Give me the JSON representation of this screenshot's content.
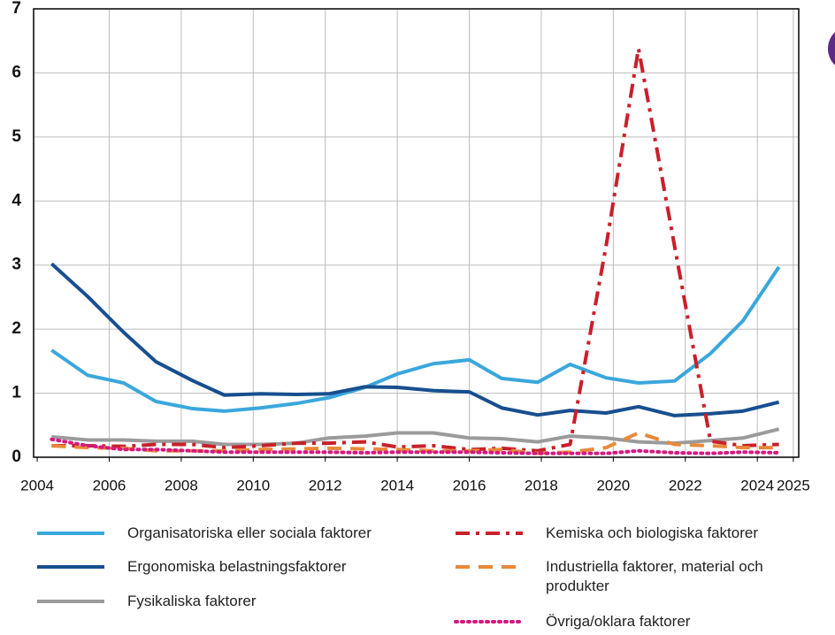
{
  "chart_data": {
    "type": "line",
    "x": [
      2004.4,
      2005.4,
      2006.4,
      2007.3,
      2008.3,
      2009.2,
      2010.2,
      2011.2,
      2012.1,
      2013.1,
      2014.0,
      2015.0,
      2016.0,
      2016.9,
      2017.9,
      2018.8,
      2019.8,
      2020.7,
      2021.7,
      2022.7,
      2023.6,
      2024.6
    ],
    "series": [
      {
        "name": "Organisatoriska eller sociala faktorer",
        "color": "#3aa7dc",
        "dash": "solid",
        "values": [
          1.67,
          1.28,
          1.16,
          0.87,
          0.76,
          0.72,
          0.77,
          0.84,
          0.93,
          1.09,
          1.3,
          1.46,
          1.52,
          1.23,
          1.17,
          1.45,
          1.24,
          1.16,
          1.19,
          1.62,
          2.13,
          2.97
        ]
      },
      {
        "name": "Ergonomiska belastningsfaktorer",
        "color": "#174f8f",
        "dash": "solid",
        "values": [
          3.02,
          2.51,
          1.95,
          1.49,
          1.2,
          0.97,
          0.99,
          0.98,
          0.99,
          1.1,
          1.09,
          1.04,
          1.02,
          0.77,
          0.66,
          0.73,
          0.69,
          0.79,
          0.65,
          0.68,
          0.72,
          0.86
        ]
      },
      {
        "name": "Fysikaliska faktorer",
        "color": "#9b9b9b",
        "dash": "solid",
        "values": [
          0.32,
          0.27,
          0.27,
          0.25,
          0.25,
          0.2,
          0.2,
          0.22,
          0.3,
          0.33,
          0.38,
          0.38,
          0.3,
          0.29,
          0.24,
          0.33,
          0.3,
          0.24,
          0.22,
          0.26,
          0.3,
          0.44
        ]
      },
      {
        "name": "Kemiska och biologiska faktorer",
        "color": "#c8202a",
        "dash": "dashdot",
        "values": [
          0.18,
          0.18,
          0.17,
          0.2,
          0.2,
          0.15,
          0.18,
          0.22,
          0.22,
          0.24,
          0.16,
          0.18,
          0.12,
          0.14,
          0.1,
          0.2,
          3.3,
          6.38,
          3.3,
          0.25,
          0.18,
          0.2
        ]
      },
      {
        "name": "Industriella faktorer, material och produkter",
        "color": "#e8893a",
        "dash": "dashed",
        "values": [
          0.18,
          0.15,
          0.14,
          0.1,
          0.1,
          0.1,
          0.12,
          0.13,
          0.14,
          0.13,
          0.12,
          0.1,
          0.1,
          0.12,
          0.06,
          0.08,
          0.15,
          0.38,
          0.2,
          0.18,
          0.15,
          0.15
        ]
      },
      {
        "name": "Övriga/oklara faktorer",
        "color": "#d4197f",
        "dash": "dotted",
        "values": [
          0.28,
          0.18,
          0.12,
          0.12,
          0.1,
          0.08,
          0.08,
          0.08,
          0.08,
          0.07,
          0.08,
          0.08,
          0.08,
          0.07,
          0.06,
          0.06,
          0.06,
          0.1,
          0.07,
          0.06,
          0.08,
          0.07
        ]
      }
    ],
    "xlim": [
      2003.9,
      2025.15
    ],
    "xticks": [
      2004,
      2006,
      2008,
      2010,
      2012,
      2014,
      2016,
      2018,
      2020,
      2022,
      2024,
      2025
    ],
    "ylim": [
      0,
      7
    ],
    "yticks": [
      0,
      1,
      2,
      3,
      4,
      5,
      6,
      7
    ],
    "grid": true
  }
}
